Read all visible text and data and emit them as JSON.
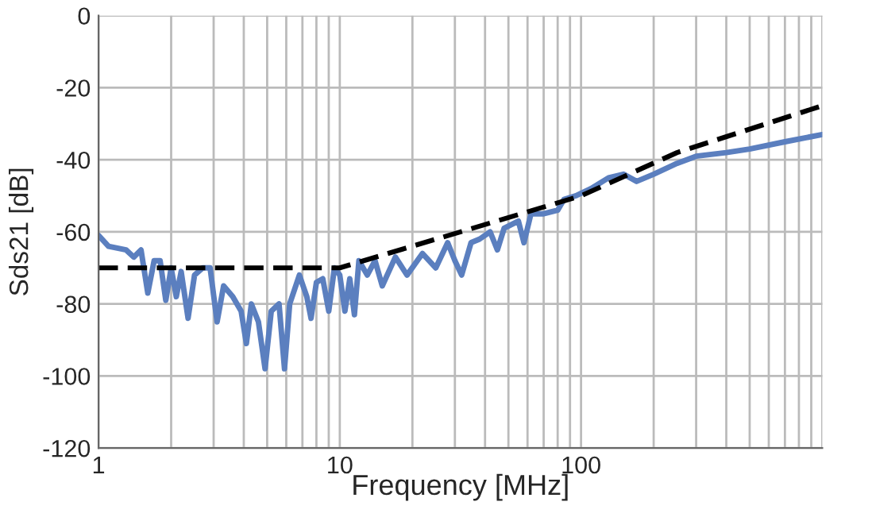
{
  "chart_data": {
    "type": "line",
    "xlabel": "Frequency [MHz]",
    "ylabel": "Sds21 [dB]",
    "log": "x",
    "grid": true,
    "legend": false,
    "xlim": [
      1,
      1000
    ],
    "ylim": [
      -120,
      0
    ],
    "xticks": [
      1,
      {
        "value": 2,
        "label": null
      },
      {
        "value": 3,
        "label": null
      },
      {
        "value": 4,
        "label": null
      },
      {
        "value": 5,
        "label": null
      },
      {
        "value": 6,
        "label": null
      },
      {
        "value": 7,
        "label": null
      },
      {
        "value": 8,
        "label": null
      },
      {
        "value": 9,
        "label": null
      },
      10,
      {
        "value": 20,
        "label": null
      },
      {
        "value": 30,
        "label": null
      },
      {
        "value": 40,
        "label": null
      },
      {
        "value": 50,
        "label": null
      },
      {
        "value": 60,
        "label": null
      },
      {
        "value": 70,
        "label": null
      },
      {
        "value": 80,
        "label": null
      },
      {
        "value": 90,
        "label": null
      },
      100,
      {
        "value": 200,
        "label": null
      },
      {
        "value": 300,
        "label": null
      },
      {
        "value": 400,
        "label": null
      },
      {
        "value": 500,
        "label": null
      },
      {
        "value": 600,
        "label": null
      },
      {
        "value": 700,
        "label": null
      },
      {
        "value": 800,
        "label": null
      },
      {
        "value": 900,
        "label": null
      },
      {
        "value": 1000,
        "label": null
      }
    ],
    "yticks": [
      -120,
      -100,
      -80,
      -60,
      -40,
      -20,
      0
    ],
    "series": [
      {
        "color": "#5b7fbf",
        "line_style": "solid",
        "x": [
          1,
          1.1,
          1.3,
          1.4,
          1.5,
          1.6,
          1.7,
          1.8,
          1.9,
          2.0,
          2.1,
          2.2,
          2.35,
          2.5,
          2.7,
          2.9,
          3.1,
          3.3,
          3.6,
          3.9,
          4.1,
          4.3,
          4.6,
          4.9,
          5.2,
          5.6,
          5.9,
          6.2,
          6.8,
          7.3,
          7.6,
          8.0,
          8.5,
          9.0,
          9.5,
          10,
          10.5,
          11,
          11.5,
          12,
          13,
          14,
          15,
          17,
          19,
          22,
          25,
          28,
          30,
          32,
          35,
          38,
          42,
          45,
          48,
          55,
          58,
          62,
          70,
          80,
          85,
          95,
          110,
          130,
          150,
          170,
          200,
          250,
          300,
          400,
          500,
          700,
          1000
        ],
        "values": [
          -61,
          -64,
          -65,
          -67,
          -65,
          -77,
          -68,
          -68,
          -79,
          -70,
          -78,
          -71,
          -84,
          -72,
          -70,
          -70,
          -85,
          -75,
          -78,
          -82,
          -91,
          -80,
          -85,
          -98,
          -82,
          -80,
          -98,
          -80,
          -72,
          -78,
          -84,
          -74,
          -73,
          -82,
          -70,
          -72,
          -82,
          -73,
          -83,
          -68,
          -72,
          -68,
          -75,
          -67,
          -72,
          -66,
          -70,
          -63,
          -68,
          -72,
          -63,
          -62,
          -60,
          -65,
          -59,
          -57,
          -63,
          -55,
          -55,
          -54,
          -51,
          -50,
          -48,
          -45,
          -44,
          -46,
          -44,
          -41,
          -39,
          -38,
          -37,
          -35,
          -33
        ]
      },
      {
        "color": "#000000",
        "line_style": "dashed",
        "x": [
          1,
          10,
          100,
          250,
          1000
        ],
        "values": [
          -70,
          -70,
          -50,
          -38,
          -25
        ]
      }
    ]
  }
}
